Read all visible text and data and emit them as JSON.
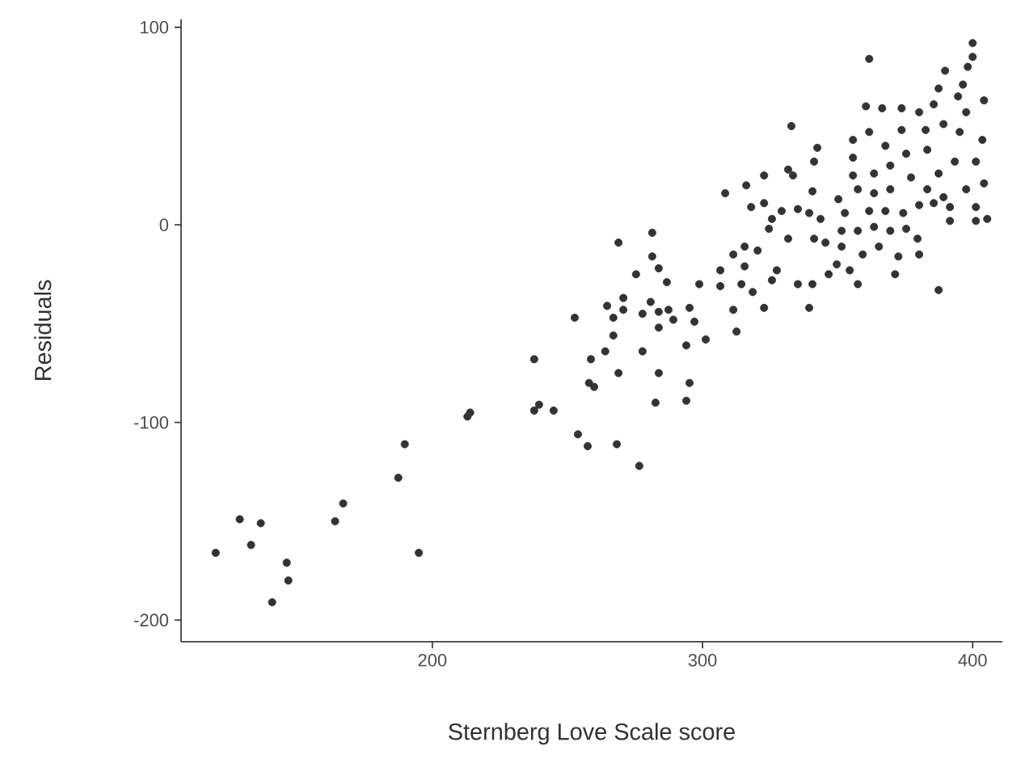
{
  "chart_data": {
    "type": "scatter",
    "xlabel": "Sternberg Love Scale score",
    "ylabel": "Residuals",
    "xlim": [
      107,
      411
    ],
    "ylim": [
      -211,
      104
    ],
    "xticks": [
      200,
      300,
      400
    ],
    "yticks": [
      -200,
      -100,
      0,
      100
    ],
    "grid": false,
    "marker": "circle",
    "color": "#333333",
    "x": [
      119.8,
      128.7,
      132.9,
      136.5,
      140.7,
      146.1,
      146.7,
      164,
      167,
      187.4,
      189.8,
      195,
      214,
      213,
      237.7,
      239.5,
      244.9,
      237.7,
      253.9,
      257.5,
      258,
      268.3,
      268.9,
      281.4,
      281.4,
      283.8,
      275.4,
      286.8,
      298.8,
      306.6,
      306.6,
      252.7,
      264.7,
      270.7,
      270.7,
      267,
      277.8,
      280.8,
      283.8,
      287.4,
      289.2,
      295.2,
      297,
      283.8,
      301.2,
      294,
      267,
      264,
      258.7,
      277.8,
      268.9,
      283.8,
      259.9,
      295.2,
      294,
      282.6,
      276.6,
      308.4,
      400,
      400,
      398.2,
      361.7,
      389.8,
      396.4,
      404.2,
      387.4,
      332.9,
      360.5,
      366.5,
      373.7,
      380.2,
      385.6,
      394.6,
      397.6,
      373.7,
      382.6,
      389.2,
      395.2,
      403.6,
      355.7,
      361.7,
      367.7,
      342.5,
      341.3,
      331.7,
      333.5,
      322.8,
      316.2,
      318,
      322.8,
      340.7,
      350.3,
      355.7,
      355.7,
      363.5,
      369.5,
      375.4,
      383.2,
      387.4,
      393.4,
      401.2,
      404.2,
      397.6,
      389.2,
      383.2,
      377.2,
      369.5,
      363.5,
      357.5,
      352.7,
      361.7,
      367.7,
      374.3,
      380.2,
      385.6,
      391.6,
      401.2,
      405.4,
      401.2,
      391.6,
      325.7,
      329.3,
      335.3,
      339.5,
      343.7,
      324.6,
      331.7,
      341.3,
      345.5,
      351.5,
      357.5,
      363.5,
      369.5,
      375.4,
      379.6,
      380.2,
      372.5,
      365.3,
      359.3,
      351.5,
      349.7,
      346.7,
      357.5,
      371.3,
      387.4,
      315.6,
      311.4,
      320.4,
      315.6,
      327.5,
      325.7,
      314.4,
      318.6,
      311.4,
      322.8,
      335.3,
      340.7,
      339.5,
      312.6,
      354.5
    ],
    "values": [
      -166,
      -149,
      -162,
      -151,
      -191,
      -171,
      -180,
      -150,
      -141,
      -128,
      -111,
      -166,
      -95,
      -97,
      -94,
      -91,
      -94,
      -68,
      -106,
      -112,
      -80,
      -111,
      -9,
      -4,
      -16,
      -22,
      -25,
      -29,
      -30,
      -23,
      -31,
      -47,
      -41,
      -37,
      -43,
      -47,
      -45,
      -39,
      -44,
      -43,
      -48,
      -42,
      -49,
      -52,
      -58,
      -61,
      -56,
      -64,
      -68,
      -64,
      -75,
      -75,
      -82,
      -80,
      -89,
      -90,
      -122,
      16,
      92,
      85,
      80,
      84,
      78,
      71,
      63,
      69,
      50,
      60,
      59,
      59,
      57,
      61,
      65,
      57,
      48,
      48,
      51,
      47,
      43,
      43,
      47,
      40,
      39,
      32,
      28,
      25,
      25,
      20,
      9,
      11,
      17,
      13,
      34,
      25,
      26,
      30,
      36,
      38,
      26,
      32,
      32,
      21,
      18,
      14,
      18,
      24,
      18,
      16,
      18,
      6,
      7,
      7,
      6,
      10,
      11,
      9,
      9,
      3,
      2,
      2,
      3,
      7,
      8,
      6,
      3,
      -2,
      -7,
      -7,
      -9,
      -3,
      -3,
      -1,
      -3,
      -2,
      -7,
      -15,
      -16,
      -11,
      -15,
      -11,
      -20,
      -25,
      -30,
      -25,
      -33,
      -11,
      -15,
      -13,
      -21,
      -23,
      -28,
      -30,
      -34,
      -43,
      -42,
      -30,
      -30,
      -42,
      -54,
      -23
    ]
  }
}
